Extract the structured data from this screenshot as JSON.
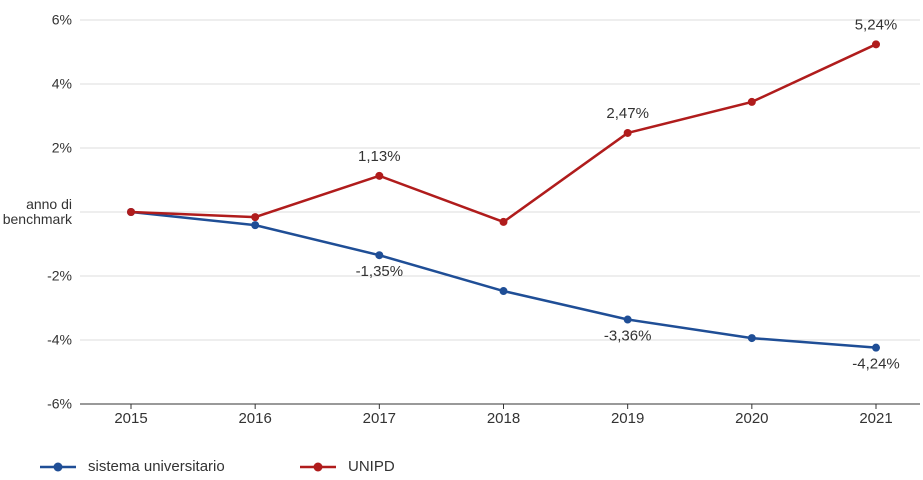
{
  "chart_data": {
    "type": "line",
    "categories": [
      "2015",
      "2016",
      "2017",
      "2018",
      "2019",
      "2020",
      "2021"
    ],
    "series": [
      {
        "name": "sistema universitario",
        "color": "#1f4e96",
        "values": [
          0,
          -0.41,
          -1.35,
          -2.47,
          -3.36,
          -3.94,
          -4.24
        ],
        "value_labels": [
          null,
          null,
          "-1,35%",
          null,
          "-3,36%",
          null,
          "-4,24%"
        ]
      },
      {
        "name": "UNIPD",
        "color": "#b01c1c",
        "values": [
          0,
          -0.16,
          1.13,
          -0.31,
          2.47,
          3.44,
          5.24
        ],
        "value_labels": [
          null,
          null,
          "1,13%",
          null,
          "2,47%",
          null,
          "5,24%"
        ]
      }
    ],
    "ylim": [
      -6,
      6
    ],
    "yticks": [
      {
        "value": -6,
        "label": "-6%"
      },
      {
        "value": -4,
        "label": "-4%"
      },
      {
        "value": -2,
        "label": "-2%"
      },
      {
        "value": 0,
        "label": "anno di benchmark"
      },
      {
        "value": 2,
        "label": "2%"
      },
      {
        "value": 4,
        "label": "4%"
      },
      {
        "value": 6,
        "label": "6%"
      }
    ],
    "grid": true
  }
}
